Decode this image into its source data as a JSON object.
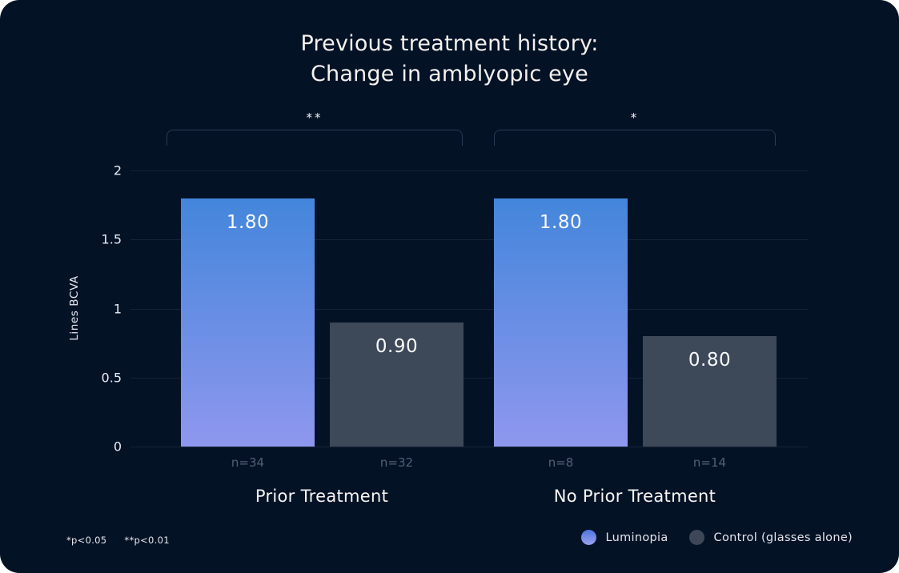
{
  "title": {
    "line1": "Previous treatment history:",
    "line2": "Change in amblyopic eye"
  },
  "chart_data": {
    "type": "bar",
    "title": "Previous treatment history: Change in amblyopic eye",
    "xlabel": "",
    "ylabel": "Lines BCVA",
    "ylim": [
      0,
      2
    ],
    "yticks": [
      0,
      0.5,
      1,
      1.5,
      2
    ],
    "ytick_labels": [
      "0",
      "0.5",
      "1",
      "1.5",
      "2"
    ],
    "grid": true,
    "legend_position": "bottom-right",
    "categories": [
      "Prior Treatment",
      "No Prior Treatment"
    ],
    "series": [
      {
        "name": "Luminopia",
        "values": [
          1.8,
          1.8
        ],
        "value_labels": [
          "1.80",
          "1.80"
        ],
        "n_labels": [
          "n=34",
          "n=8"
        ],
        "color_top": "#4386db",
        "color_bottom": "#8f97ee"
      },
      {
        "name": "Control (glasses alone)",
        "values": [
          0.9,
          0.8
        ],
        "value_labels": [
          "0.90",
          "0.80"
        ],
        "n_labels": [
          "n=32",
          "n=14"
        ],
        "color": "#3d4859"
      }
    ],
    "significance_brackets": [
      {
        "category": "Prior Treatment",
        "marker": "**"
      },
      {
        "category": "No Prior Treatment",
        "marker": "*"
      }
    ]
  },
  "footnotes": [
    "*p<0.05",
    "**p<0.01"
  ],
  "legend": [
    {
      "label": "Luminopia",
      "swatch": "luminopia-dot"
    },
    {
      "label": "Control (glasses alone)",
      "swatch": "control-dot"
    }
  ],
  "colors": {
    "background": "#041226",
    "luminopia_top": "#4386db",
    "luminopia_bottom": "#8f97ee",
    "control": "#3d4859",
    "gridline": "rgba(255,255,255,0.08)",
    "text_primary": "#f4f2ee",
    "text_muted": "#545f77"
  }
}
